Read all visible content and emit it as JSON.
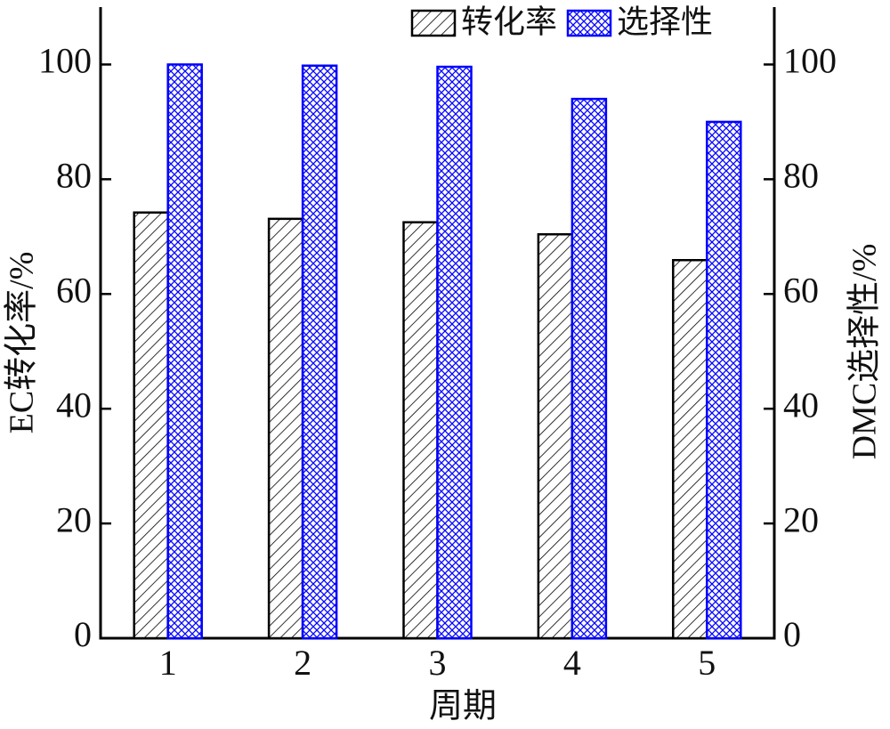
{
  "chart_data": {
    "type": "bar",
    "xlabel": "周期",
    "ylabel": "EC转化率/%",
    "y2label": "DMC选择性/%",
    "categories": [
      "1",
      "2",
      "3",
      "4",
      "5"
    ],
    "series": [
      {
        "name": "转化率",
        "color": "#000000",
        "values": [
          74.2,
          73.1,
          72.5,
          70.4,
          65.9
        ]
      },
      {
        "name": "选择性",
        "color": "#0000ff",
        "axis": "y2",
        "values": [
          100,
          99.8,
          99.6,
          94,
          90
        ]
      }
    ],
    "ylim": [
      0,
      110
    ],
    "yticks": [
      0,
      20,
      40,
      60,
      80,
      100
    ],
    "y2lim": [
      0,
      110
    ],
    "y2ticks": [
      0,
      20,
      40,
      60,
      80,
      100
    ],
    "legend": "upper right"
  }
}
